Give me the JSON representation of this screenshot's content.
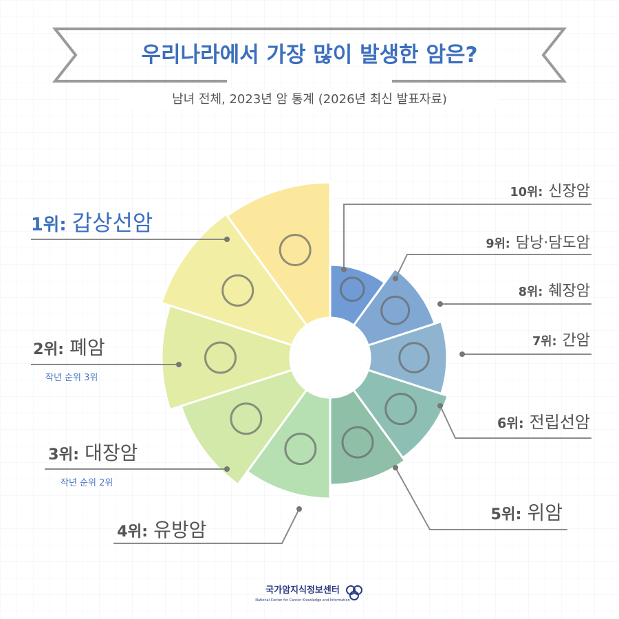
{
  "header": {
    "title": "우리나라에서 가장 많이 발생한 암은?",
    "subtitle": "남녀 전체, 2023년 암 통계 (2026년 최신 발표자료)"
  },
  "items": [
    {
      "rank": "1위:",
      "name": "갑상선암"
    },
    {
      "rank": "2위:",
      "name": "폐암",
      "note": "작년 순위 3위"
    },
    {
      "rank": "3위:",
      "name": "대장암",
      "note": "작년 순위 2위"
    },
    {
      "rank": "4위:",
      "name": "유방암"
    },
    {
      "rank": "5위:",
      "name": "위암"
    },
    {
      "rank": "6위:",
      "name": "전립선암"
    },
    {
      "rank": "7위:",
      "name": "간암"
    },
    {
      "rank": "8위:",
      "name": "췌장암"
    },
    {
      "rank": "9위:",
      "name": "담낭·담도암"
    },
    {
      "rank": "10위:",
      "name": "신장암"
    }
  ],
  "footer": {
    "logo": "국가암지식정보센터",
    "logo_sub": "National Center for Cancer Knowledge and Information"
  }
}
